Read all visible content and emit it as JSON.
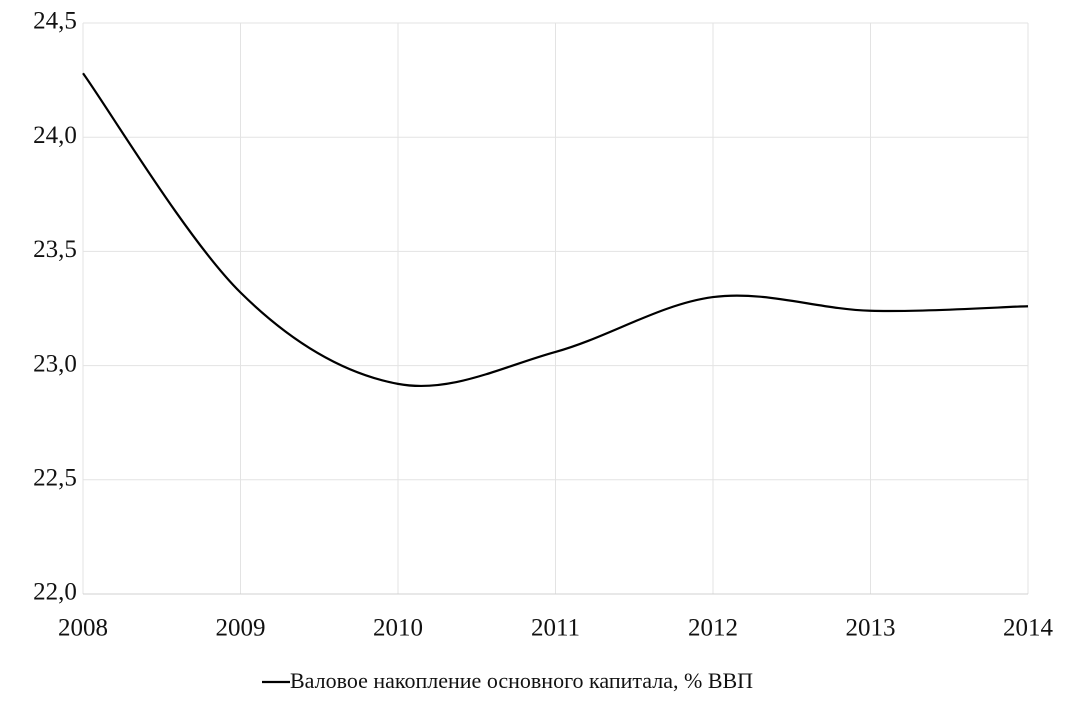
{
  "chart_data": {
    "type": "line",
    "x": [
      2008,
      2009,
      2010,
      2011,
      2012,
      2013,
      2014
    ],
    "series": [
      {
        "name": "Валовое накопление основного капитала, % ВВП",
        "color": "#000000",
        "values": [
          24.28,
          23.32,
          22.92,
          23.06,
          23.3,
          23.24,
          23.26
        ]
      }
    ],
    "xlim": [
      2008,
      2014
    ],
    "xticks": [
      2008,
      2009,
      2010,
      2011,
      2012,
      2013,
      2014
    ],
    "ylim": [
      22.0,
      24.5
    ],
    "yticks": [
      {
        "value": 22.0,
        "label": "22,0"
      },
      {
        "value": 22.5,
        "label": "22,5"
      },
      {
        "value": 23.0,
        "label": "23,0"
      },
      {
        "value": 23.5,
        "label": "23,5"
      },
      {
        "value": 24.0,
        "label": "24,0"
      },
      {
        "value": 24.5,
        "label": "24,5"
      }
    ],
    "grid": true,
    "smooth": true,
    "legend": "bottom"
  }
}
